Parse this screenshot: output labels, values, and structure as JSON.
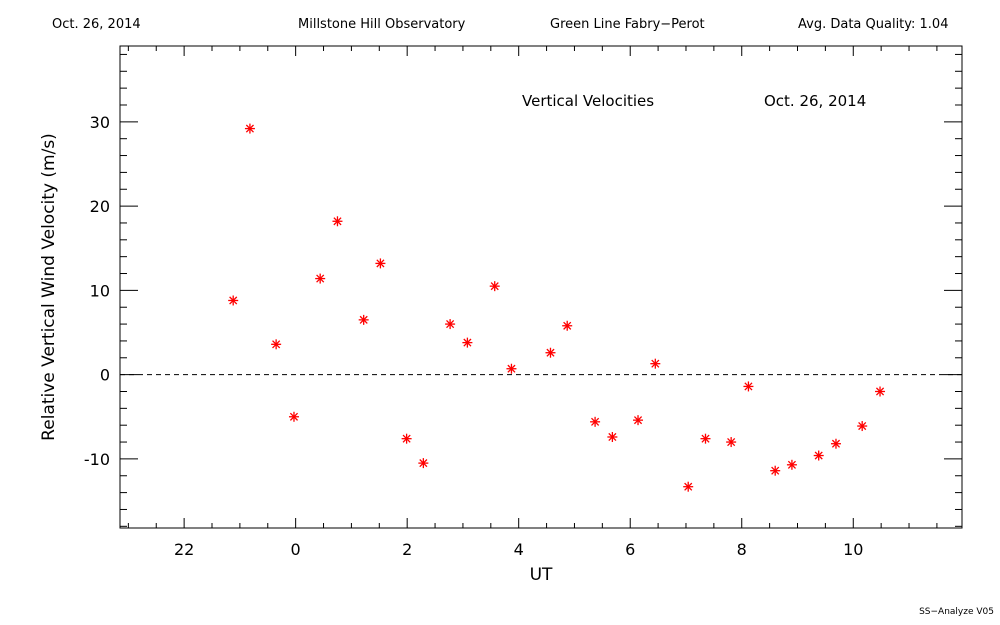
{
  "header": {
    "date": "Oct. 26, 2014",
    "observatory": "Millstone Hill Observatory",
    "instrument": "Green Line Fabry−Perot",
    "quality": "Avg. Data Quality: 1.04"
  },
  "footer": {
    "label": "SS−Analyze V05"
  },
  "colors": {
    "marker": "#ff0000",
    "axes": "#000000"
  },
  "chart_data": {
    "type": "scatter",
    "title": "Vertical Velocities",
    "subtitle": "Oct. 26, 2014",
    "xlabel": "UT",
    "ylabel": "Relative Vertical Wind Velocity (m/s)",
    "x_ticks": [
      22,
      0,
      2,
      4,
      6,
      8,
      10
    ],
    "y_ticks": [
      30,
      20,
      10,
      0,
      -10
    ],
    "xlim": [
      -3.15,
      11.95
    ],
    "ylim": [
      -18.2,
      39.0
    ],
    "x_note": "UT hours; values below 0 are hours before midnight (22 = -2)",
    "reference_line": {
      "y": 0,
      "style": "dashed"
    },
    "marker": "asterisk",
    "series": [
      {
        "points": [
          {
            "x": -1.12,
            "y": 8.8
          },
          {
            "x": -0.82,
            "y": 29.2
          },
          {
            "x": -0.35,
            "y": 3.6
          },
          {
            "x": -0.03,
            "y": -5.0
          },
          {
            "x": 0.44,
            "y": 11.4
          },
          {
            "x": 0.75,
            "y": 18.2
          },
          {
            "x": 1.22,
            "y": 6.5
          },
          {
            "x": 1.52,
            "y": 13.2
          },
          {
            "x": 1.99,
            "y": -7.6
          },
          {
            "x": 2.29,
            "y": -10.5
          },
          {
            "x": 2.77,
            "y": 6.0
          },
          {
            "x": 3.08,
            "y": 3.8
          },
          {
            "x": 3.57,
            "y": 10.5
          },
          {
            "x": 3.87,
            "y": 0.7
          },
          {
            "x": 4.57,
            "y": 2.6
          },
          {
            "x": 4.87,
            "y": 5.8
          },
          {
            "x": 5.37,
            "y": -5.6
          },
          {
            "x": 5.68,
            "y": -7.4
          },
          {
            "x": 6.14,
            "y": -5.4
          },
          {
            "x": 6.45,
            "y": 1.3
          },
          {
            "x": 7.04,
            "y": -13.3
          },
          {
            "x": 7.35,
            "y": -7.6
          },
          {
            "x": 7.81,
            "y": -8.0
          },
          {
            "x": 8.12,
            "y": -1.4
          },
          {
            "x": 8.6,
            "y": -11.4
          },
          {
            "x": 8.9,
            "y": -10.7
          },
          {
            "x": 9.38,
            "y": -9.6
          },
          {
            "x": 9.69,
            "y": -8.2
          },
          {
            "x": 10.16,
            "y": -6.1
          },
          {
            "x": 10.48,
            "y": -2.0
          }
        ]
      }
    ]
  }
}
